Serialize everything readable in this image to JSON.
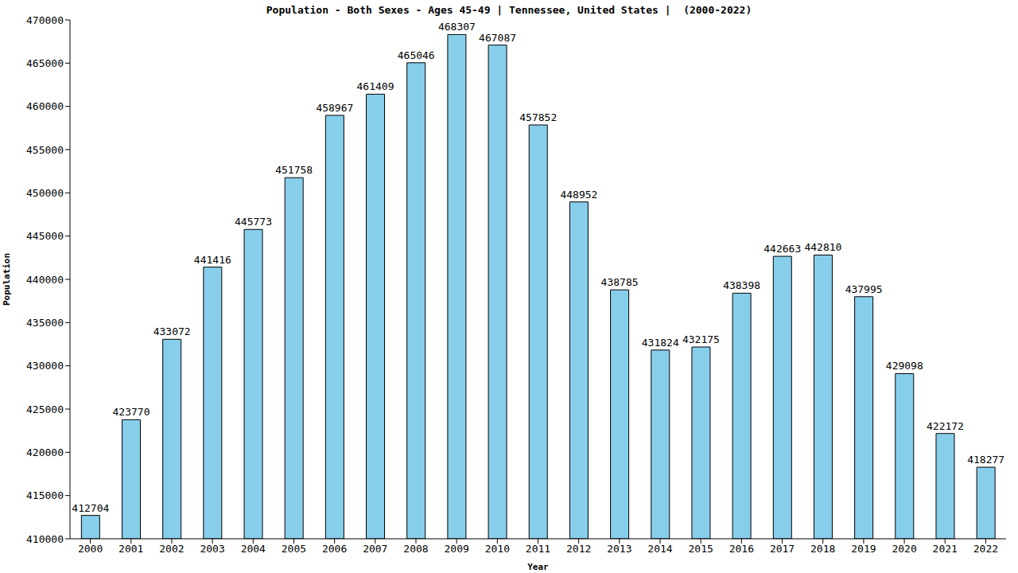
{
  "chart_data": {
    "type": "bar",
    "title": "Population - Both Sexes - Ages 45-49 | Tennessee, United States |  (2000-2022)",
    "x_label": "Year",
    "y_label": "Population",
    "categories": [
      "2000",
      "2001",
      "2002",
      "2003",
      "2004",
      "2005",
      "2006",
      "2007",
      "2008",
      "2009",
      "2010",
      "2011",
      "2012",
      "2013",
      "2014",
      "2015",
      "2016",
      "2017",
      "2018",
      "2019",
      "2020",
      "2021",
      "2022"
    ],
    "values": [
      412704,
      423770,
      433072,
      441416,
      445773,
      451758,
      458967,
      461409,
      465046,
      468307,
      467087,
      457852,
      448952,
      438785,
      431824,
      432175,
      438398,
      442663,
      442810,
      437995,
      429098,
      422172,
      418277
    ],
    "color": "#87ceeb",
    "ylim": [
      410000,
      470000
    ],
    "yticks": [
      410000,
      415000,
      420000,
      425000,
      430000,
      435000,
      440000,
      445000,
      450000,
      455000,
      460000,
      465000,
      470000
    ],
    "grid": false,
    "data_labels": true
  }
}
